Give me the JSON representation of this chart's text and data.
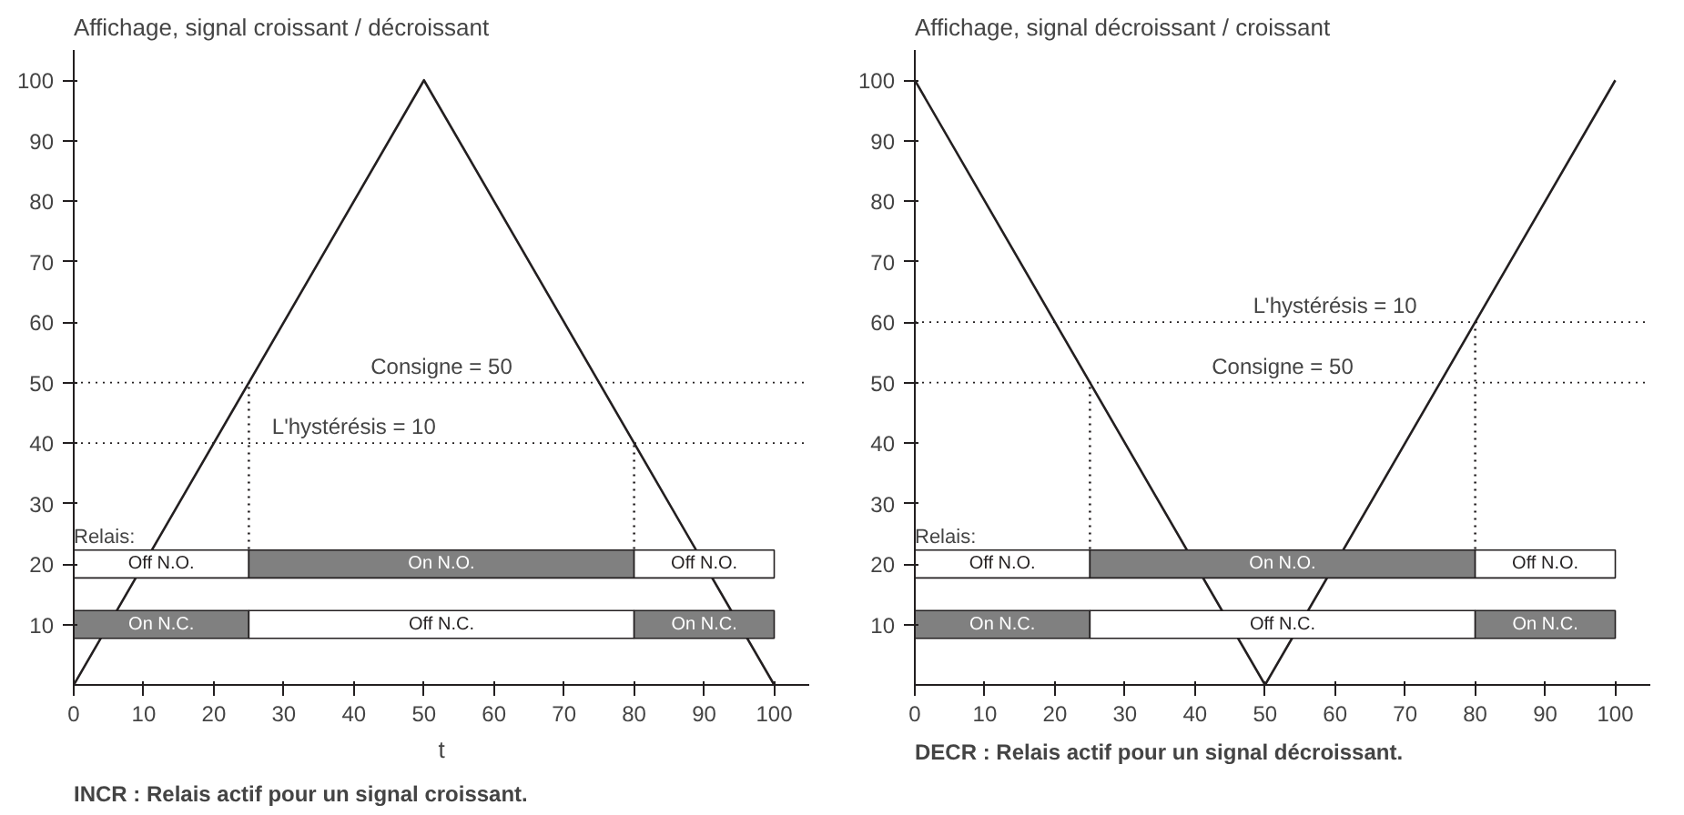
{
  "chart_data": [
    {
      "type": "line",
      "title": "Affichage, signal croissant / décroissant",
      "xlabel": "t",
      "xlim": [
        0,
        105
      ],
      "ylim": [
        0,
        105
      ],
      "xticks": [
        0,
        10,
        20,
        30,
        40,
        50,
        60,
        70,
        80,
        90,
        100
      ],
      "yticks": [
        10,
        20,
        30,
        40,
        50,
        60,
        70,
        80,
        90,
        100
      ],
      "grid": false,
      "marker": "none",
      "series": [
        {
          "color": "#231f20",
          "x": [
            0,
            50,
            100
          ],
          "values": [
            0,
            100,
            0
          ]
        },
        {
          "color": "#231f20",
          "line_style": "dotted",
          "x": [
            25,
            25
          ],
          "values": [
            22.5,
            50
          ]
        },
        {
          "color": "#231f20",
          "line_style": "dotted",
          "x": [
            80,
            80
          ],
          "values": [
            22.5,
            40
          ]
        }
      ],
      "ref_lines": [
        {
          "axis": "y",
          "value": 50,
          "label": "Consigne = 50",
          "line_style": "dotted"
        },
        {
          "axis": "y",
          "value": 40,
          "line_style": "dotted"
        }
      ],
      "bands": [
        {
          "axis": "x",
          "from": 0,
          "to": 25,
          "label": "Off N.O.",
          "color": "#ffffff"
        },
        {
          "axis": "x",
          "from": 25,
          "to": 80,
          "label": "On N.O.",
          "color": "#808080"
        },
        {
          "axis": "x",
          "from": 80,
          "to": 100,
          "label": "Off N.O.",
          "color": "#ffffff"
        },
        {
          "axis": "x",
          "from": 0,
          "to": 25,
          "label": "On N.C.",
          "color": "#808080"
        },
        {
          "axis": "x",
          "from": 25,
          "to": 80,
          "label": "Off N.C.",
          "color": "#ffffff"
        },
        {
          "axis": "x",
          "from": 80,
          "to": 100,
          "label": "On N.C.",
          "color": "#808080"
        }
      ],
      "annotations": [
        "Relais:",
        {
          "text": "L'hystérésis = 10",
          "x": 40,
          "y": 40
        },
        "INCR : Relais actif pour un signal croissant."
      ]
    },
    {
      "type": "line",
      "title": "Affichage, signal décroissant / croissant",
      "xlim": [
        0,
        105
      ],
      "ylim": [
        0,
        105
      ],
      "xticks": [
        0,
        10,
        20,
        30,
        40,
        50,
        60,
        70,
        80,
        90,
        100
      ],
      "yticks": [
        10,
        20,
        30,
        40,
        50,
        60,
        70,
        80,
        90,
        100
      ],
      "grid": false,
      "marker": "none",
      "series": [
        {
          "color": "#231f20",
          "x": [
            0,
            50,
            100
          ],
          "values": [
            100,
            0,
            100
          ]
        },
        {
          "color": "#231f20",
          "line_style": "dotted",
          "x": [
            25,
            25
          ],
          "values": [
            22.5,
            50
          ]
        },
        {
          "color": "#231f20",
          "line_style": "dotted",
          "x": [
            80,
            80
          ],
          "values": [
            22.5,
            60
          ]
        }
      ],
      "ref_lines": [
        {
          "axis": "y",
          "value": 50,
          "label": "Consigne = 50",
          "line_style": "dotted"
        },
        {
          "axis": "y",
          "value": 60,
          "line_style": "dotted"
        }
      ],
      "bands": [
        {
          "axis": "x",
          "from": 0,
          "to": 25,
          "label": "Off N.O.",
          "color": "#ffffff"
        },
        {
          "axis": "x",
          "from": 25,
          "to": 80,
          "label": "On N.O.",
          "color": "#808080"
        },
        {
          "axis": "x",
          "from": 80,
          "to": 100,
          "label": "Off N.O.",
          "color": "#ffffff"
        },
        {
          "axis": "x",
          "from": 0,
          "to": 25,
          "label": "On N.C.",
          "color": "#808080"
        },
        {
          "axis": "x",
          "from": 25,
          "to": 80,
          "label": "Off N.C.",
          "color": "#ffffff"
        },
        {
          "axis": "x",
          "from": 80,
          "to": 100,
          "label": "On N.C.",
          "color": "#808080"
        }
      ],
      "annotations": [
        "Relais:",
        {
          "text": "L'hystérésis = 10",
          "x": 60,
          "y": 60
        },
        "DECR : Relais actif pour un signal décroissant."
      ]
    }
  ]
}
